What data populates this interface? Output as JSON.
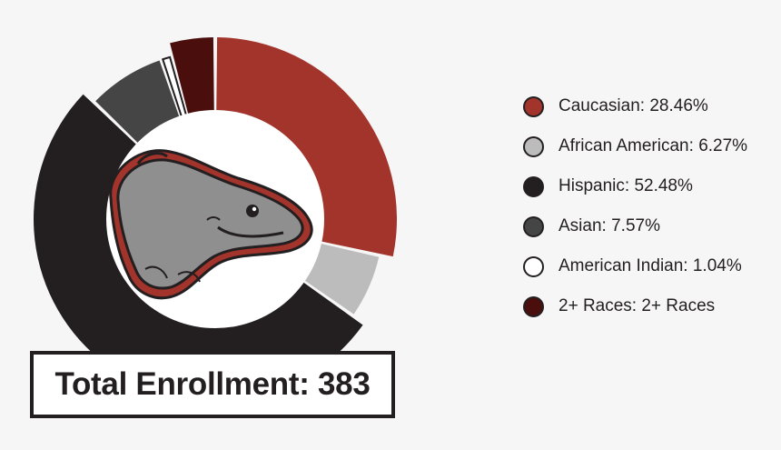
{
  "chart_data": {
    "type": "pie",
    "variant": "donut",
    "slices": [
      {
        "label": "Caucasian",
        "value": 28.46,
        "display": "28.46%",
        "color": "#a3342b"
      },
      {
        "label": "African American",
        "value": 6.27,
        "display": "6.27%",
        "color": "#bcbcbc"
      },
      {
        "label": "Hispanic",
        "value": 52.48,
        "display": "52.48%",
        "color": "#231f20"
      },
      {
        "label": "Asian",
        "value": 7.57,
        "display": "7.57%",
        "color": "#454545"
      },
      {
        "label": "American Indian",
        "value": 1.04,
        "display": "1.04%",
        "color": "#ffffff"
      },
      {
        "label": "2+ Races",
        "value": 4.18,
        "display": "2+ Races",
        "color": "#4a0f0c"
      }
    ],
    "legend_position": "right",
    "center_image": "dolphin-mascot-icon",
    "total_label": "Total Enrollment: 383"
  }
}
